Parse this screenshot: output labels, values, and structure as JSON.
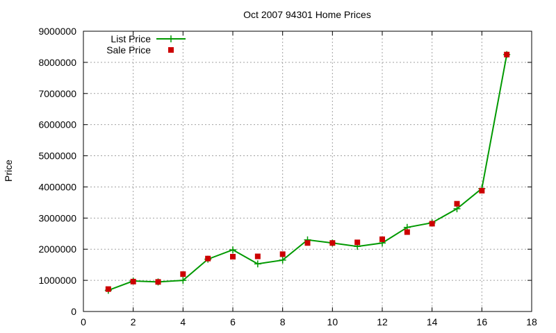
{
  "chart_data": {
    "type": "line",
    "title": "Oct 2007 94301 Home Prices",
    "xlabel": "",
    "ylabel": "Price",
    "xlim": [
      0,
      18
    ],
    "ylim": [
      0,
      9000000
    ],
    "x_ticks": [
      0,
      2,
      4,
      6,
      8,
      10,
      12,
      14,
      16,
      18
    ],
    "y_ticks": [
      0,
      1000000,
      2000000,
      3000000,
      4000000,
      5000000,
      6000000,
      7000000,
      8000000,
      9000000
    ],
    "grid": true,
    "legend_position": "top-left",
    "series": [
      {
        "name": "List Price",
        "style": "line-with-plus-markers",
        "color": "#009900",
        "x": [
          1,
          2,
          3,
          4,
          5,
          6,
          7,
          8,
          9,
          10,
          11,
          12,
          13,
          14,
          15,
          16,
          17
        ],
        "y": [
          680000,
          980000,
          950000,
          1000000,
          1680000,
          1980000,
          1530000,
          1650000,
          2300000,
          2200000,
          2090000,
          2200000,
          2700000,
          2850000,
          3300000,
          3950000,
          8250000
        ]
      },
      {
        "name": "Sale Price",
        "style": "square-points",
        "color": "#cc0000",
        "x": [
          1,
          2,
          3,
          4,
          5,
          6,
          7,
          8,
          9,
          10,
          11,
          12,
          13,
          14,
          15,
          16,
          17
        ],
        "y": [
          720000,
          960000,
          950000,
          1200000,
          1700000,
          1760000,
          1770000,
          1840000,
          2200000,
          2200000,
          2220000,
          2320000,
          2550000,
          2820000,
          3460000,
          3880000,
          8250000
        ]
      }
    ]
  }
}
